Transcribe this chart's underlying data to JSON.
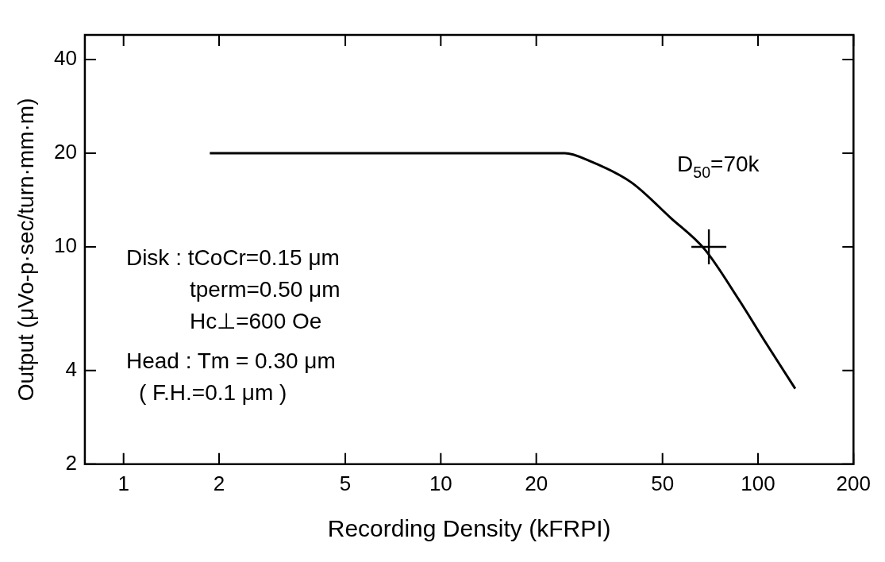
{
  "chart_data": {
    "type": "line",
    "xlabel": "Recording Density (kFRPI)",
    "ylabel": "Output (μVo-p·sec/turn·mm·m)",
    "log": "xy",
    "grid": false,
    "legend": false,
    "xlim": [
      0.755,
      200
    ],
    "xticks": [
      1,
      2,
      5,
      10,
      20,
      50,
      100,
      200
    ],
    "ylim": [
      2,
      48
    ],
    "yticks": [
      2,
      4,
      10,
      20,
      40
    ],
    "series": [
      {
        "color": "#000000",
        "marker": "none",
        "line_style": "solid",
        "x": [
          1.87,
          10,
          24.6,
          29.4,
          39.9,
          53,
          68,
          86.7,
          106,
          131
        ],
        "values": [
          20,
          20,
          20,
          18.9,
          16.1,
          12.4,
          9.8,
          6.8,
          4.9,
          3.5
        ]
      },
      {
        "type": "scatter",
        "color": "#000000",
        "marker": "cross",
        "x": [
          70
        ],
        "values": [
          10
        ]
      }
    ],
    "annotations": [
      {
        "text": "D$_{50}$=70k",
        "x": 70,
        "y": 10
      },
      "Disk : tCoCr=0.15 μm",
      "tperm=0.50 μm",
      "Hc⊥=600 Oe",
      "Head : Tm = 0.30 μm",
      "( F.H.=0.1 μm )"
    ]
  }
}
